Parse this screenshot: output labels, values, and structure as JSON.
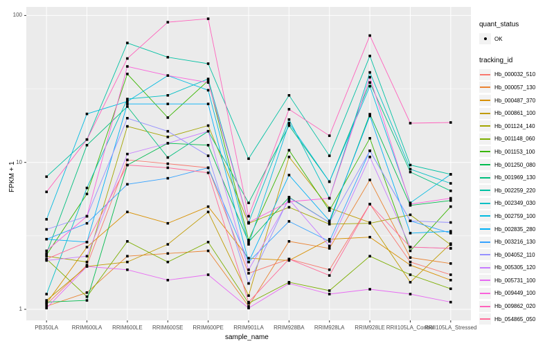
{
  "axes": {
    "y_title": "FPKM + 1",
    "x_title": "sample_name",
    "y_tick_labels": [
      "1",
      "10",
      "100"
    ]
  },
  "legend": {
    "quant_status_title": "quant_status",
    "quant_status_items": [
      "OK"
    ],
    "tracking_title": "tracking_id"
  },
  "colors": {
    "panel_background": "#EBEBEB",
    "grid_line": "#FFFFFF",
    "tick_text": "#4D4D4D",
    "point": "#000000",
    "legend_key_background": "#F2F2F2"
  },
  "chart_data": {
    "type": "line",
    "title": "",
    "xlabel": "sample_name",
    "ylabel": "FPKM + 1",
    "y_scale": "log10",
    "ylim": [
      1,
      100
    ],
    "y_major_ticks": [
      1,
      10,
      100
    ],
    "y_minor_gridlines": [
      3.162,
      31.62
    ],
    "grid": true,
    "legend_position": "right",
    "point_marker": "black dot (quant_status OK)",
    "categories": [
      "PB350LA",
      "RRIM600LA",
      "RRIM600LE",
      "RRIM600SE",
      "RRIM600PE",
      "RRIM901LA",
      "RRIM928BA",
      "RRIM928LA",
      "RRIM928LE",
      "RRII105LA_Control",
      "RRII105LA_Stressed"
    ],
    "series": [
      {
        "name": "Hb_000032_510",
        "color": "#F8766D",
        "values": [
          1.08,
          2.0,
          10.4,
          9.8,
          9.2,
          1.76,
          2.2,
          1.86,
          5.2,
          2.1,
          1.72
        ]
      },
      {
        "name": "Hb_000057_130",
        "color": "#EA8331",
        "values": [
          1.05,
          1.3,
          2.3,
          2.4,
          2.5,
          1.05,
          2.9,
          2.6,
          7.6,
          2.25,
          2.05
        ]
      },
      {
        "name": "Hb_000487_370",
        "color": "#D89000",
        "values": [
          1.1,
          2.65,
          4.6,
          3.85,
          5.0,
          2.23,
          2.15,
          3.0,
          3.1,
          2.0,
          1.58
        ]
      },
      {
        "name": "Hb_000861_100",
        "color": "#C09B00",
        "values": [
          1.15,
          1.96,
          2.1,
          2.77,
          4.6,
          1.24,
          10.9,
          4.9,
          3.9,
          1.53,
          2.8
        ]
      },
      {
        "name": "Hb_001124_140",
        "color": "#A3A500",
        "values": [
          2.3,
          2.1,
          17.6,
          14.9,
          17.8,
          3.85,
          4.95,
          3.8,
          3.85,
          4.4,
          2.75
        ]
      },
      {
        "name": "Hb_001148_060",
        "color": "#7CAE00",
        "values": [
          2.2,
          1.22,
          2.9,
          2.1,
          2.87,
          1.1,
          1.53,
          1.34,
          2.3,
          1.72,
          1.38
        ]
      },
      {
        "name": "Hb_001153_100",
        "color": "#39B600",
        "values": [
          2.35,
          6.1,
          40,
          20.2,
          36,
          2.96,
          12.1,
          4.7,
          14.6,
          2.5,
          5.0
        ]
      },
      {
        "name": "Hb_001250_080",
        "color": "#00BB4E",
        "values": [
          1.12,
          1.15,
          9.6,
          13.5,
          13.1,
          2.87,
          5.8,
          3.9,
          21.3,
          5.1,
          5.5
        ]
      },
      {
        "name": "Hb_001969_130",
        "color": "#00BF7D",
        "values": [
          2.4,
          13.1,
          24,
          10.8,
          16.3,
          5.3,
          17.8,
          7.4,
          35,
          8.6,
          6.4
        ]
      },
      {
        "name": "Hb_002259_220",
        "color": "#00C1A3",
        "values": [
          8.0,
          14.3,
          65,
          52,
          47,
          10.6,
          28.6,
          11.1,
          53,
          9.6,
          8.3
        ]
      },
      {
        "name": "Hb_002349_030",
        "color": "#00BFC4",
        "values": [
          1.27,
          6.7,
          27,
          28.6,
          37,
          3.9,
          19.6,
          5.7,
          41,
          9.0,
          7.2
        ]
      },
      {
        "name": "Hb_002759_100",
        "color": "#00BAE0",
        "values": [
          4.1,
          21.4,
          26,
          39,
          31,
          2.77,
          18.5,
          7.4,
          33,
          5.3,
          8.3
        ]
      },
      {
        "name": "Hb_002835_280",
        "color": "#00B0F6",
        "values": [
          3.0,
          2.87,
          25,
          25,
          25,
          2.1,
          8.2,
          4.0,
          20.7,
          3.3,
          3.4
        ]
      },
      {
        "name": "Hb_003216_130",
        "color": "#35A2FF",
        "values": [
          3.0,
          3.85,
          7.1,
          7.8,
          9.2,
          2.1,
          3.97,
          2.9,
          12.0,
          4.0,
          3.3
        ]
      },
      {
        "name": "Hb_004052_110",
        "color": "#9590FF",
        "values": [
          3.5,
          4.3,
          20,
          16.3,
          11.1,
          1.5,
          5.75,
          3.9,
          12.0,
          4.0,
          3.9
        ]
      },
      {
        "name": "Hb_005305_120",
        "color": "#C77CFF",
        "values": [
          2.15,
          2.3,
          11.4,
          13.5,
          16.3,
          1.86,
          5.6,
          2.7,
          10.9,
          2.65,
          2.6
        ]
      },
      {
        "name": "Hb_005731_100",
        "color": "#E76BF3",
        "values": [
          1.02,
          1.96,
          1.86,
          1.58,
          1.72,
          1.02,
          1.5,
          1.27,
          1.37,
          1.27,
          1.12
        ]
      },
      {
        "name": "Hb_009449_100",
        "color": "#FA62DB",
        "values": [
          2.5,
          4.3,
          45,
          39,
          35,
          3.9,
          5.4,
          5.7,
          38,
          5.2,
          5.7
        ]
      },
      {
        "name": "Hb_009862_020",
        "color": "#FF62BC",
        "values": [
          6.3,
          14.3,
          51,
          90,
          95,
          4.3,
          23,
          15.2,
          73,
          18.5,
          18.7
        ]
      },
      {
        "name": "Hb_054865_050",
        "color": "#FF6A98",
        "values": [
          2.2,
          2.87,
          9.6,
          9.2,
          8.5,
          1.12,
          2.2,
          1.7,
          5.2,
          2.65,
          2.6
        ]
      }
    ]
  }
}
